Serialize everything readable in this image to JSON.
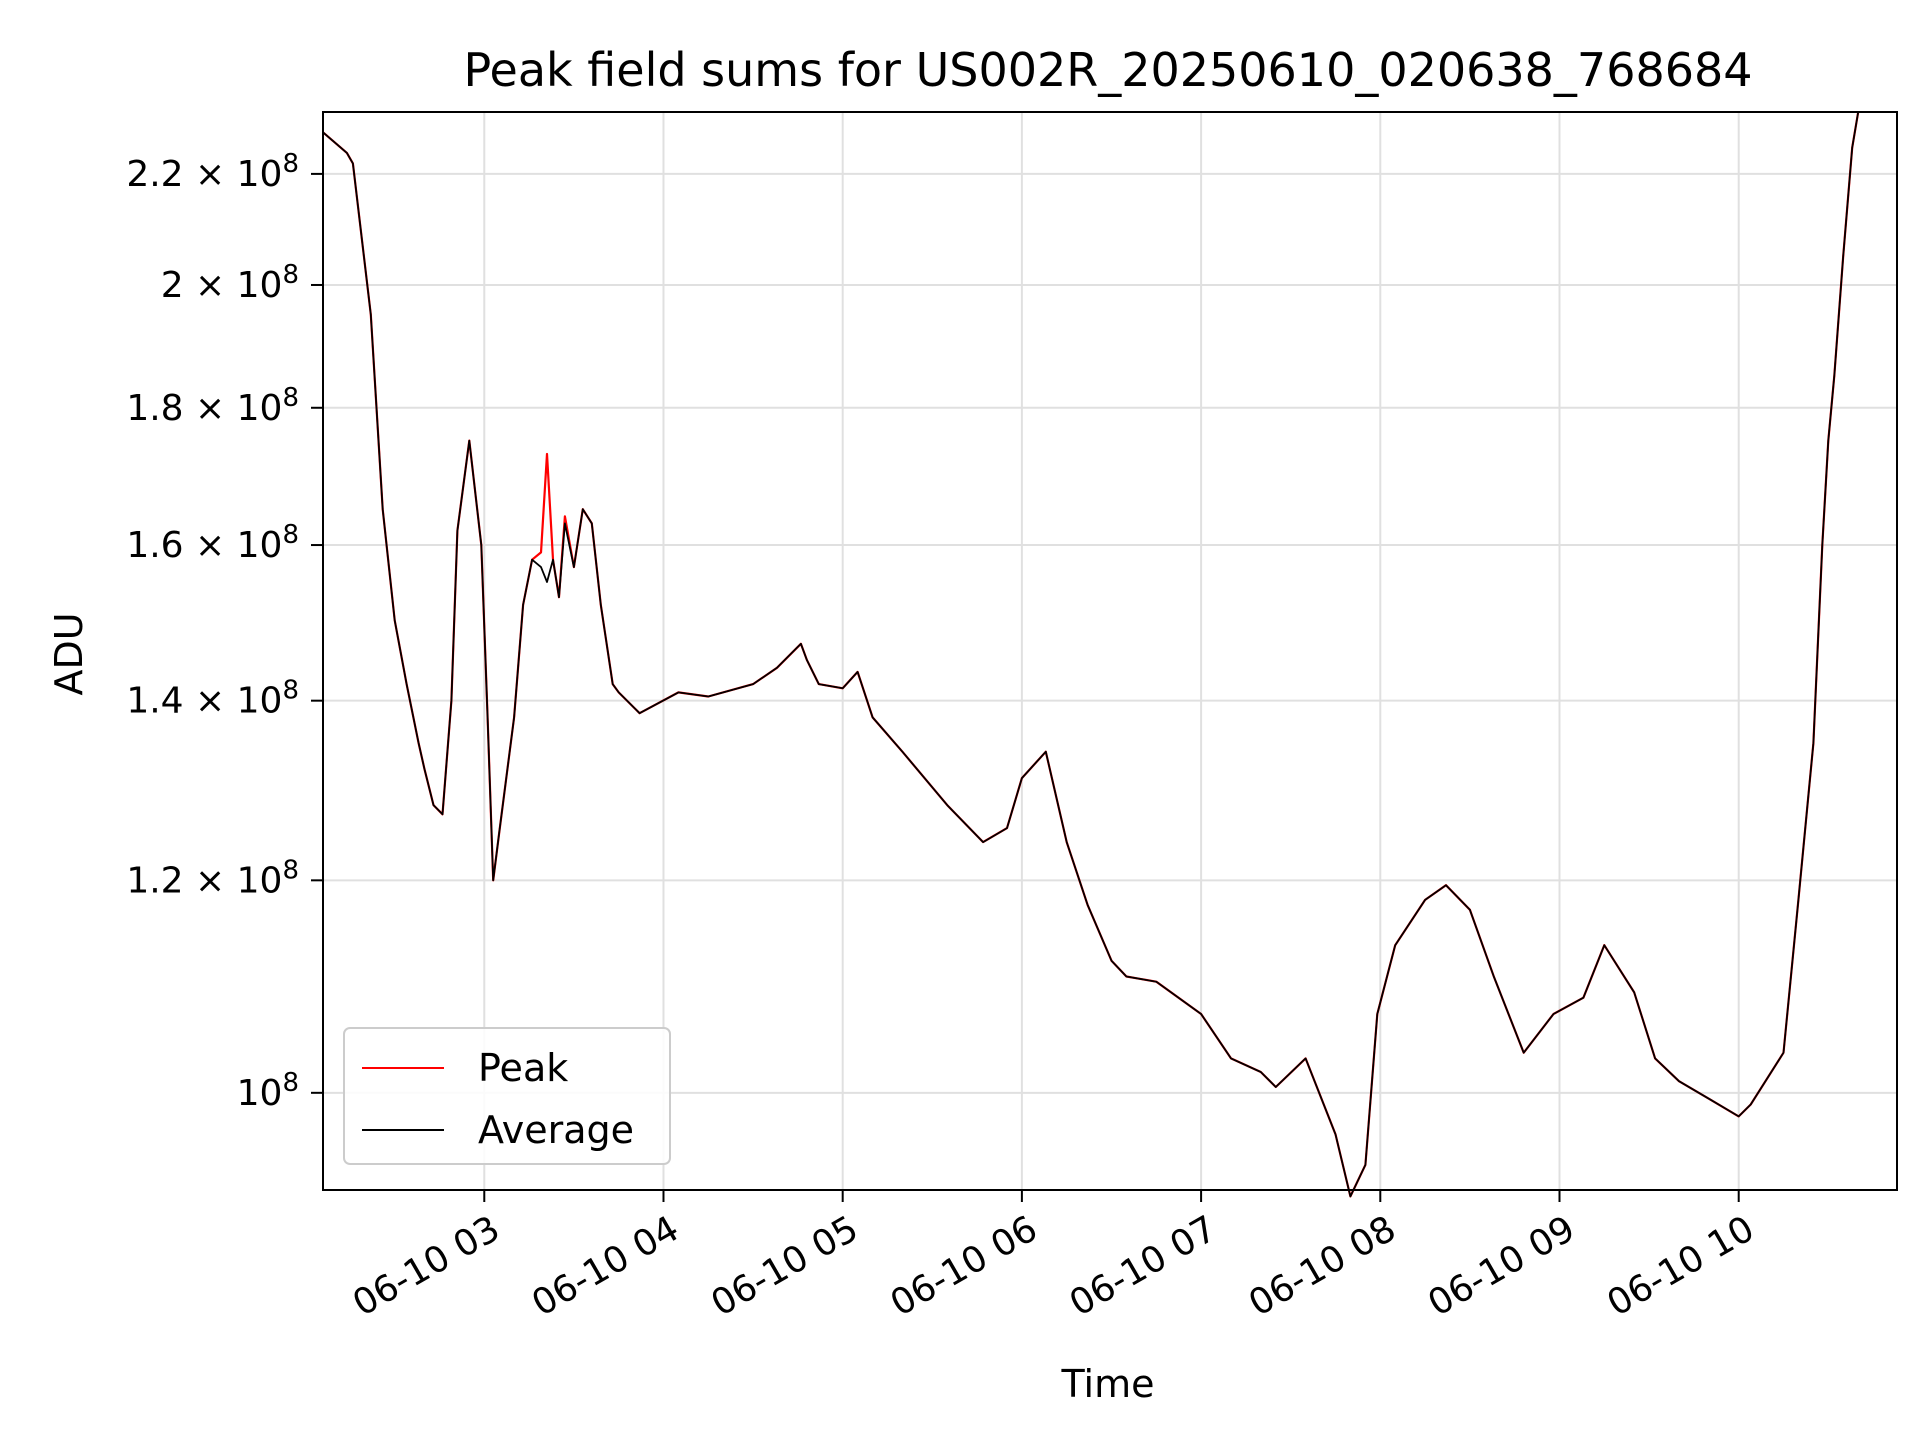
{
  "chart_data": {
    "type": "line",
    "title": "Peak field sums for US002R_20250610_020638_768684",
    "xlabel": "Time",
    "ylabel": "ADU",
    "yscale": "log",
    "grid": true,
    "legend_position": "lower-left",
    "xlim": [
      "06-10 02:06",
      "06-10 10:53"
    ],
    "ylim": [
      92000000,
      232000000
    ],
    "x_ticks": [
      "06-10 03",
      "06-10 04",
      "06-10 05",
      "06-10 06",
      "06-10 07",
      "06-10 08",
      "06-10 09",
      "06-10 10"
    ],
    "y_ticks": [
      {
        "value": 100000000,
        "mantissa": "",
        "exponent": "8"
      },
      {
        "value": 120000000,
        "mantissa": "1.2",
        "exponent": "8"
      },
      {
        "value": 140000000,
        "mantissa": "1.4",
        "exponent": "8"
      },
      {
        "value": 160000000,
        "mantissa": "1.6",
        "exponent": "8"
      },
      {
        "value": 180000000,
        "mantissa": "1.8",
        "exponent": "8"
      },
      {
        "value": 200000000,
        "mantissa": "2",
        "exponent": "8"
      },
      {
        "value": 220000000,
        "mantissa": "2.2",
        "exponent": "8"
      }
    ],
    "x": [
      "02:06",
      "02:14",
      "02:16",
      "02:22",
      "02:26",
      "02:30",
      "02:34",
      "02:38",
      "02:40",
      "02:43",
      "02:46",
      "02:49",
      "02:51",
      "02:55",
      "02:59",
      "03:01",
      "03:03",
      "03:05",
      "03:10",
      "03:13",
      "03:16",
      "03:19",
      "03:21",
      "03:23",
      "03:25",
      "03:27",
      "03:30",
      "03:33",
      "03:36",
      "03:39",
      "03:43",
      "03:45",
      "03:52",
      "04:05",
      "04:15",
      "04:30",
      "04:38",
      "04:46",
      "04:48",
      "04:52",
      "05:00",
      "05:05",
      "05:10",
      "05:20",
      "05:35",
      "05:47",
      "05:55",
      "06:00",
      "06:08",
      "06:15",
      "06:22",
      "06:30",
      "06:35",
      "06:45",
      "07:00",
      "07:10",
      "07:20",
      "07:25",
      "07:35",
      "07:45",
      "07:50",
      "07:55",
      "07:59",
      "08:05",
      "08:15",
      "08:22",
      "08:30",
      "08:38",
      "08:48",
      "08:58",
      "09:08",
      "09:15",
      "09:25",
      "09:32",
      "09:40",
      "09:50",
      "10:00",
      "10:04",
      "10:15",
      "10:20",
      "10:25",
      "10:28",
      "10:30",
      "10:32",
      "10:35",
      "10:38",
      "10:40"
    ],
    "series": [
      {
        "name": "Peak",
        "color": "#ff0000",
        "values": [
          228000000,
          224000000,
          222000000,
          195000000,
          165000000,
          150000000,
          142000000,
          135000000,
          132000000,
          128000000,
          127000000,
          140000000,
          162000000,
          175000000,
          160000000,
          139000000,
          120000000,
          125000000,
          138000000,
          152000000,
          158000000,
          159000000,
          173000000,
          158000000,
          153000000,
          164000000,
          157000000,
          165000000,
          163000000,
          152000000,
          142000000,
          141000000,
          138500000,
          141000000,
          140500000,
          142000000,
          144000000,
          147000000,
          145000000,
          142000000,
          141500000,
          143500000,
          138000000,
          134000000,
          128000000,
          124000000,
          125500000,
          131000000,
          134000000,
          124000000,
          117500000,
          112000000,
          110500000,
          110000000,
          107000000,
          103000000,
          101800000,
          100500000,
          103000000,
          96500000,
          91500000,
          94000000,
          107000000,
          113500000,
          118000000,
          119500000,
          117000000,
          110500000,
          103500000,
          107000000,
          108500000,
          113500000,
          109000000,
          103000000,
          101000000,
          99500000,
          98000000,
          99000000,
          103500000,
          118000000,
          135000000,
          160000000,
          175000000,
          185000000,
          205000000,
          225000000,
          232000000
        ]
      },
      {
        "name": "Average",
        "color": "#000000",
        "values": [
          228000000,
          224000000,
          222000000,
          195000000,
          165000000,
          150000000,
          142000000,
          135000000,
          132000000,
          128000000,
          127000000,
          140000000,
          162000000,
          175000000,
          160000000,
          139000000,
          120000000,
          125000000,
          138000000,
          152000000,
          158000000,
          157000000,
          155000000,
          158000000,
          153000000,
          163000000,
          157000000,
          165000000,
          163000000,
          152000000,
          142000000,
          141000000,
          138500000,
          141000000,
          140500000,
          142000000,
          144000000,
          147000000,
          145000000,
          142000000,
          141500000,
          143500000,
          138000000,
          134000000,
          128000000,
          124000000,
          125500000,
          131000000,
          134000000,
          124000000,
          117500000,
          112000000,
          110500000,
          110000000,
          107000000,
          103000000,
          101800000,
          100500000,
          103000000,
          96500000,
          91500000,
          94000000,
          107000000,
          113500000,
          118000000,
          119500000,
          117000000,
          110500000,
          103500000,
          107000000,
          108500000,
          113500000,
          109000000,
          103000000,
          101000000,
          99500000,
          98000000,
          99000000,
          103500000,
          118000000,
          135000000,
          160000000,
          175000000,
          185000000,
          205000000,
          225000000,
          232000000
        ]
      }
    ]
  }
}
